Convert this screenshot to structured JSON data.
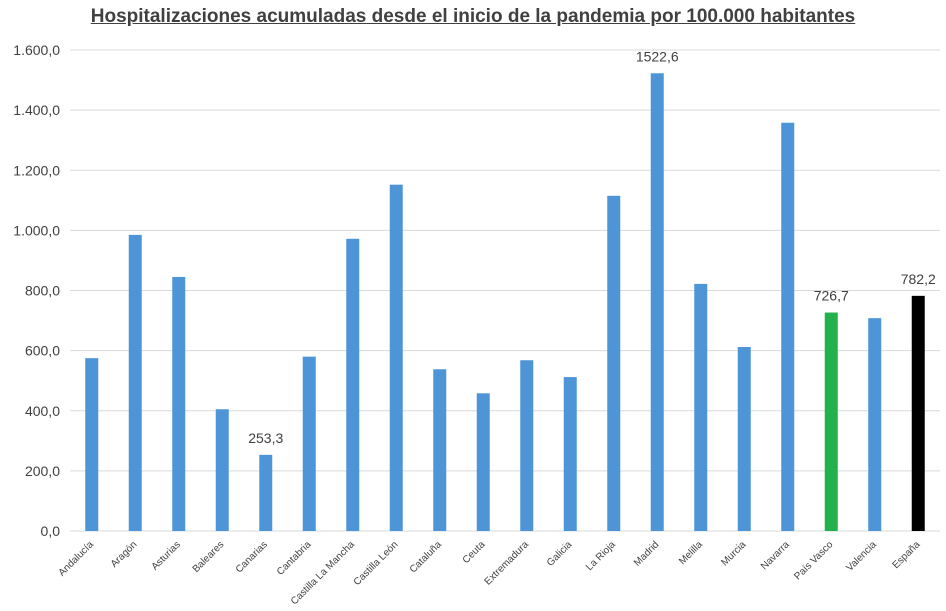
{
  "chart_data": {
    "type": "bar",
    "title": "Hospitalizaciones acumuladas desde el inicio de la pandemia por 100.000 habitantes",
    "xlabel": "",
    "ylabel": "",
    "ylim": [
      0,
      1600
    ],
    "yticks": [
      "0,0",
      "200,0",
      "400,0",
      "600,0",
      "800,0",
      "1.000,0",
      "1.200,0",
      "1.400,0",
      "1.600,0"
    ],
    "ytick_values": [
      0,
      200,
      400,
      600,
      800,
      1000,
      1200,
      1400,
      1600
    ],
    "grid": true,
    "legend": "none",
    "categories": [
      "Andalucía",
      "Aragón",
      "Asturias",
      "Baleares",
      "Canarias",
      "Cantabria",
      "Castilla La Mancha",
      "Castilla León",
      "Cataluña",
      "Ceuta",
      "Extremadura",
      "Galicia",
      "La Rioja",
      "Madrid",
      "Melilla",
      "Murcia",
      "Navarra",
      "País Vasco",
      "Valencia",
      "España"
    ],
    "values": [
      575,
      985,
      845,
      405,
      253.3,
      580,
      972,
      1152,
      538,
      458,
      568,
      512,
      1115,
      1522.6,
      822,
      612,
      1358,
      726.7,
      708,
      782.2
    ],
    "colors": [
      "#4E95D8",
      "#4E95D8",
      "#4E95D8",
      "#4E95D8",
      "#4E95D8",
      "#4E95D8",
      "#4E95D8",
      "#4E95D8",
      "#4E95D8",
      "#4E95D8",
      "#4E95D8",
      "#4E95D8",
      "#4E95D8",
      "#4E95D8",
      "#4E95D8",
      "#4E95D8",
      "#4E95D8",
      "#22B14C",
      "#4E95D8",
      "#000000"
    ],
    "data_labels": [
      {
        "index": 4,
        "text": "253,3"
      },
      {
        "index": 13,
        "text": "1522,6"
      },
      {
        "index": 17,
        "text": "726,7"
      },
      {
        "index": 19,
        "text": "782,2"
      }
    ],
    "gridline_color": "#D9D9D9"
  }
}
